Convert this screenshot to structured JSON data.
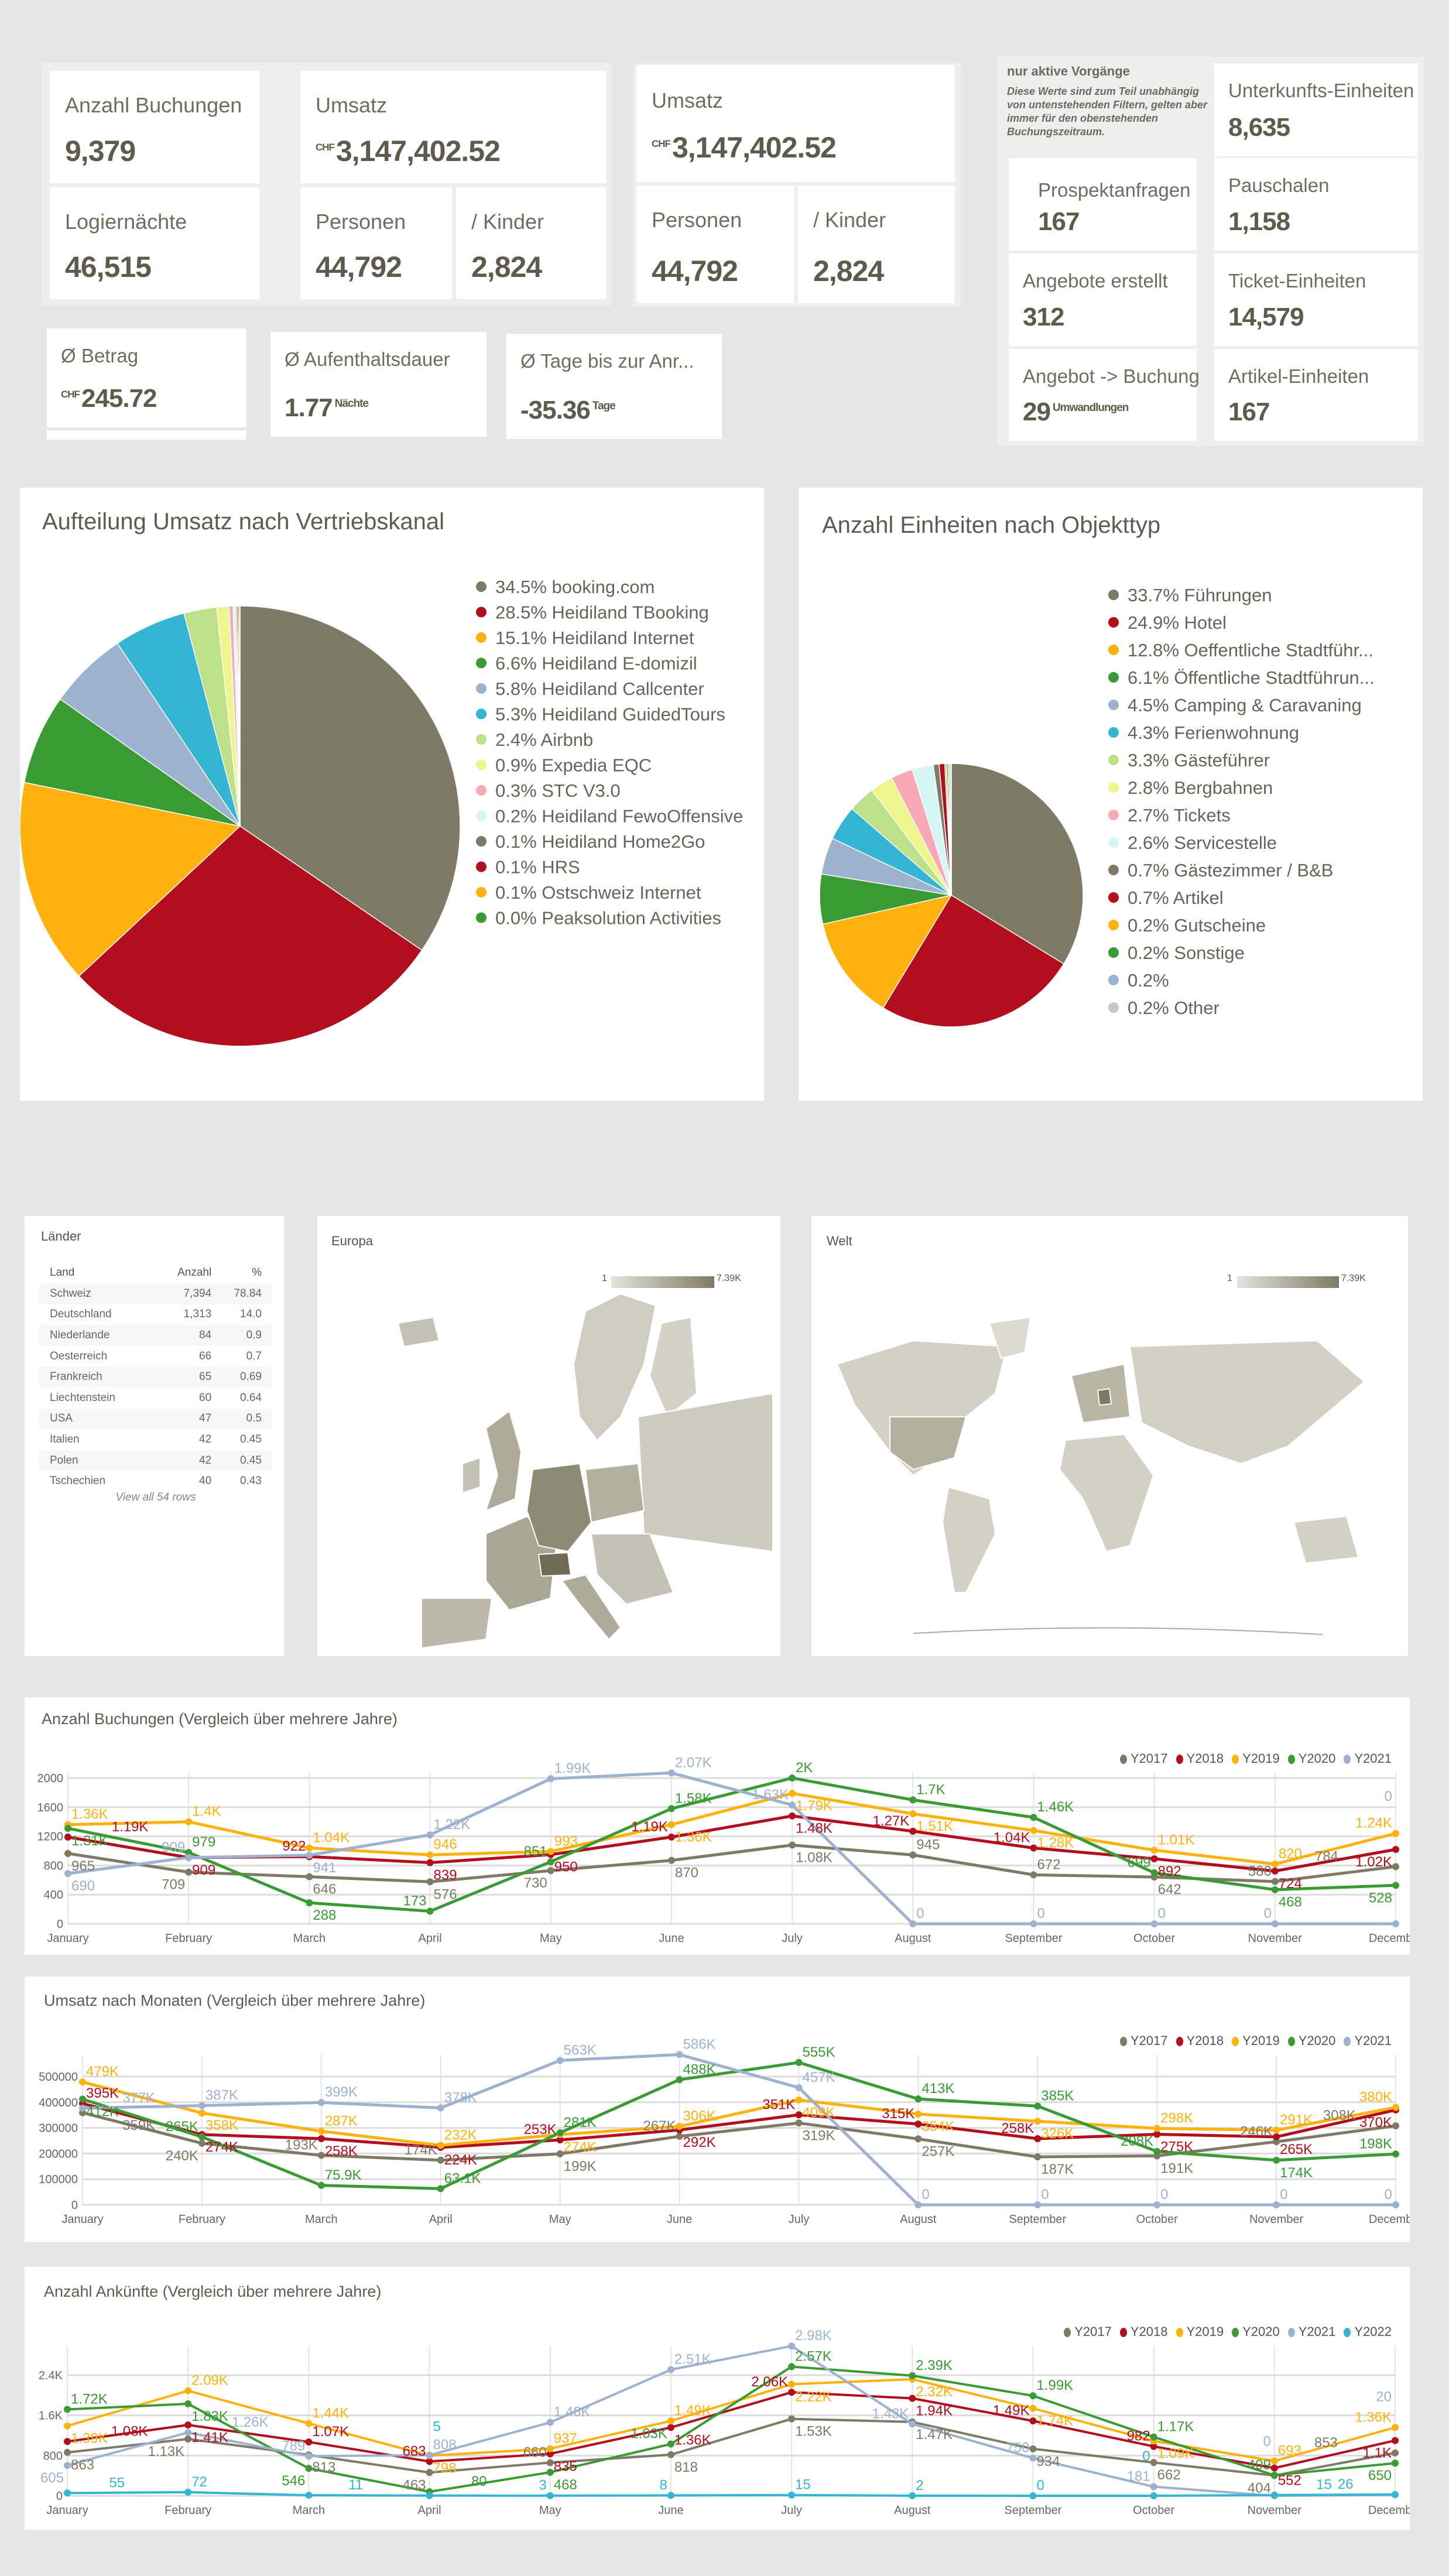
{
  "kpi_group1": {
    "anzahl_buchungen": {
      "label": "Anzahl Buchungen",
      "value": "9,379"
    },
    "umsatz": {
      "label": "Umsatz",
      "currency": "CHF",
      "value": "3,147,402.52"
    },
    "logiernaechte": {
      "label": "Logiernächte",
      "value": "46,515"
    },
    "personen": {
      "label": "Personen",
      "value": "44,792"
    },
    "kinder": {
      "label": "/ Kinder",
      "value": "2,824"
    }
  },
  "kpi_group2": {
    "umsatz": {
      "label": "Umsatz",
      "currency": "CHF",
      "value": "3,147,402.52"
    },
    "personen": {
      "label": "Personen",
      "value": "44,792"
    },
    "kinder": {
      "label": "/ Kinder",
      "value": "2,824"
    }
  },
  "averages": {
    "betrag": {
      "label": "Ø Betrag",
      "currency": "CHF",
      "value": "245.72"
    },
    "aufenthalt": {
      "label": "Ø Aufenthaltsdauer",
      "value": "1.77",
      "unit": "Nächte"
    },
    "tage": {
      "label": "Ø Tage bis zur Anr...",
      "value": "-35.36",
      "unit": "Tage"
    }
  },
  "active": {
    "title": "nur aktive Vorgänge",
    "note": "Diese Werte sind zum Teil unabhängig von untenstehenden Filtern, gelten aber immer für den obenstehenden Buchungszeitraum.",
    "unterkunft": {
      "label": "Unterkunfts-Einheiten",
      "value": "8,635"
    },
    "prospekt": {
      "label": "Prospektanfragen",
      "value": "167"
    },
    "pauschalen": {
      "label": "Pauschalen",
      "value": "1,158"
    },
    "angebote": {
      "label": "Angebote erstellt",
      "value": "312"
    },
    "tickets": {
      "label": "Ticket-Einheiten",
      "value": "14,579"
    },
    "angebot_buchung": {
      "label": "Angebot -> Buchung",
      "value": "29",
      "unit": "Umwandlungen"
    },
    "artikel": {
      "label": "Artikel-Einheiten",
      "value": "167"
    }
  },
  "countries": {
    "title": "Länder",
    "columns": [
      "Land",
      "Anzahl",
      "%"
    ],
    "rows": [
      [
        "Schweiz",
        "7,394",
        "78.84"
      ],
      [
        "Deutschland",
        "1,313",
        "14.0"
      ],
      [
        "Niederlande",
        "84",
        "0.9"
      ],
      [
        "Oesterreich",
        "66",
        "0.7"
      ],
      [
        "Frankreich",
        "65",
        "0.69"
      ],
      [
        "Liechtenstein",
        "60",
        "0.64"
      ],
      [
        "USA",
        "47",
        "0.5"
      ],
      [
        "Italien",
        "42",
        "0.45"
      ],
      [
        "Polen",
        "42",
        "0.45"
      ],
      [
        "Tschechien",
        "40",
        "0.43"
      ]
    ],
    "view_all": "View all 54 rows"
  },
  "maps": {
    "europe": {
      "title": "Europa",
      "legend_min": "1",
      "legend_max": "7.39K"
    },
    "world": {
      "title": "Welt",
      "legend_min": "1",
      "legend_max": "7.39K"
    },
    "scale_colors": [
      "#e4e3dc",
      "#7f7a65"
    ]
  },
  "colors": {
    "Y2017": "#7f7a65",
    "Y2018": "#b20e1e",
    "Y2019": "#ffb20e",
    "Y2020": "#3a9a34",
    "Y2021": "#9db2cf",
    "Y2022": "#33b5d3"
  },
  "chart_data": [
    {
      "type": "pie",
      "title": "Aufteilung Umsatz nach Vertriebskanal",
      "slices": [
        {
          "label": "booking.com",
          "value": 34.5,
          "color": "#7f7a65"
        },
        {
          "label": "Heidiland TBooking",
          "value": 28.5,
          "color": "#b20e1e"
        },
        {
          "label": "Heidiland Internet",
          "value": 15.1,
          "color": "#ffb20e"
        },
        {
          "label": "Heidiland E-domizil",
          "value": 6.6,
          "color": "#3a9a34"
        },
        {
          "label": "Heidiland Callcenter",
          "value": 5.8,
          "color": "#9db2cf"
        },
        {
          "label": "Heidiland GuidedTours",
          "value": 5.3,
          "color": "#33b5d3"
        },
        {
          "label": "Airbnb",
          "value": 2.4,
          "color": "#bde08a"
        },
        {
          "label": "Expedia EQC",
          "value": 0.9,
          "color": "#eef58d"
        },
        {
          "label": "STC V3.0",
          "value": 0.3,
          "color": "#f9a8b5"
        },
        {
          "label": "Heidiland FewoOffensive",
          "value": 0.2,
          "color": "#d6f6f6"
        },
        {
          "label": "Heidiland Home2Go",
          "value": 0.1,
          "color": "#7f7a65"
        },
        {
          "label": "HRS",
          "value": 0.1,
          "color": "#b20e1e"
        },
        {
          "label": "Ostschweiz Internet",
          "value": 0.1,
          "color": "#ffb20e"
        },
        {
          "label": "Peaksolution Activities",
          "value": 0.0,
          "color": "#3a9a34"
        }
      ]
    },
    {
      "type": "pie",
      "title": "Anzahl Einheiten nach Objekttyp",
      "slices": [
        {
          "label": "Führungen",
          "value": 33.7,
          "color": "#7f7a65"
        },
        {
          "label": "Hotel",
          "value": 24.9,
          "color": "#b20e1e"
        },
        {
          "label": "Oeffentliche Stadtführ...",
          "value": 12.8,
          "color": "#ffb20e"
        },
        {
          "label": "Öffentliche Stadtführun...",
          "value": 6.1,
          "color": "#3a9a34"
        },
        {
          "label": "Camping & Caravaning",
          "value": 4.5,
          "color": "#9db2cf"
        },
        {
          "label": "Ferienwohnung",
          "value": 4.3,
          "color": "#33b5d3"
        },
        {
          "label": "Gästeführer",
          "value": 3.3,
          "color": "#bde08a"
        },
        {
          "label": "Bergbahnen",
          "value": 2.8,
          "color": "#eef58d"
        },
        {
          "label": "Tickets",
          "value": 2.7,
          "color": "#f9a8b5"
        },
        {
          "label": "Servicestelle",
          "value": 2.6,
          "color": "#d6f6f6"
        },
        {
          "label": "Gästezimmer / B&B",
          "value": 0.7,
          "color": "#7f7a65"
        },
        {
          "label": "Artikel",
          "value": 0.7,
          "color": "#b20e1e"
        },
        {
          "label": "Gutscheine",
          "value": 0.2,
          "color": "#ffb20e"
        },
        {
          "label": "Sonstige",
          "value": 0.2,
          "color": "#3a9a34"
        },
        {
          "label": "",
          "value": 0.2,
          "color": "#9db2cf"
        },
        {
          "label": "Other",
          "value": 0.2,
          "color": "#c8c8c8"
        }
      ]
    },
    {
      "type": "line",
      "title": "Anzahl Buchungen (Vergleich über mehrere Jahre)",
      "categories": [
        "January",
        "February",
        "March",
        "April",
        "May",
        "June",
        "July",
        "August",
        "September",
        "October",
        "November",
        "December"
      ],
      "ylim": [
        0,
        2000
      ],
      "yticks": [
        0,
        400,
        800,
        1200,
        1600,
        2000
      ],
      "ytick_labels": [
        "0",
        "400",
        "800",
        "1200",
        "1600",
        "2000"
      ],
      "grid": true,
      "legend": "top-right",
      "series": [
        {
          "name": "Y2017",
          "values": [
            965,
            709,
            646,
            576,
            730,
            870,
            1080,
            945,
            672,
            642,
            580,
            784
          ]
        },
        {
          "name": "Y2018",
          "values": [
            1190,
            909,
            922,
            839,
            950,
            1190,
            1480,
            1270,
            1040,
            892,
            724,
            1020
          ]
        },
        {
          "name": "Y2019",
          "values": [
            1360,
            1400,
            1040,
            946,
            993,
            1360,
            1790,
            1510,
            1280,
            1010,
            820,
            1240
          ]
        },
        {
          "name": "Y2020",
          "values": [
            1310,
            979,
            288,
            173,
            851,
            1580,
            2000,
            1700,
            1460,
            699,
            468,
            528
          ]
        },
        {
          "name": "Y2021",
          "values": [
            690,
            909,
            941,
            1220,
            1990,
            2070,
            1630,
            0,
            0,
            0,
            0,
            0
          ]
        }
      ]
    },
    {
      "type": "line",
      "title": "Umsatz nach Monaten (Vergleich über mehrere Jahre)",
      "categories": [
        "January",
        "February",
        "March",
        "April",
        "May",
        "June",
        "July",
        "August",
        "September",
        "October",
        "November",
        "December"
      ],
      "ylim": [
        0,
        500000
      ],
      "yticks": [
        0,
        100000,
        200000,
        300000,
        400000,
        500000
      ],
      "ytick_labels": [
        "0",
        "100000",
        "200000",
        "300000",
        "400000",
        "500000"
      ],
      "grid": true,
      "legend": "top-right",
      "series": [
        {
          "name": "Y2017",
          "values": [
            359000,
            240000,
            193000,
            174000,
            199000,
            267000,
            319000,
            257000,
            187000,
            191000,
            246000,
            308000
          ]
        },
        {
          "name": "Y2018",
          "values": [
            395000,
            274000,
            258000,
            224000,
            253000,
            292000,
            351000,
            315000,
            258000,
            275000,
            265000,
            370000
          ]
        },
        {
          "name": "Y2019",
          "values": [
            479000,
            358000,
            287000,
            232000,
            274000,
            306000,
            409000,
            354000,
            326000,
            298000,
            291000,
            380000
          ]
        },
        {
          "name": "Y2020",
          "values": [
            412000,
            265000,
            75900,
            63100,
            281000,
            488000,
            555000,
            413000,
            385000,
            208000,
            174000,
            198000
          ]
        },
        {
          "name": "Y2021",
          "values": [
            377000,
            387000,
            399000,
            378000,
            563000,
            586000,
            457000,
            0,
            0,
            0,
            0,
            0
          ]
        }
      ]
    },
    {
      "type": "line",
      "title": "Anzahl Ankünfte (Vergleich über mehrere Jahre)",
      "categories": [
        "January",
        "February",
        "March",
        "April",
        "May",
        "June",
        "July",
        "August",
        "September",
        "October",
        "November",
        "December"
      ],
      "ylim": [
        0,
        2400
      ],
      "yticks": [
        0,
        800,
        1600,
        2400
      ],
      "ytick_labels": [
        "0",
        "800",
        "1.6K",
        "2.4K"
      ],
      "grid": true,
      "legend": "top-right",
      "series": [
        {
          "name": "Y2017",
          "values": [
            863,
            1130,
            813,
            463,
            660,
            818,
            1530,
            1470,
            934,
            662,
            404,
            853
          ]
        },
        {
          "name": "Y2018",
          "values": [
            1080,
            1410,
            1070,
            683,
            835,
            1360,
            2060,
            1940,
            1490,
            982,
            552,
            1100
          ]
        },
        {
          "name": "Y2019",
          "values": [
            1390,
            2090,
            1440,
            798,
            937,
            1490,
            2220,
            2320,
            1740,
            1090,
            693,
            1360
          ]
        },
        {
          "name": "Y2020",
          "values": [
            1720,
            1830,
            546,
            80,
            468,
            1030,
            2570,
            2390,
            1990,
            1170,
            409,
            650
          ]
        },
        {
          "name": "Y2021",
          "values": [
            605,
            1260,
            789,
            808,
            1460,
            2510,
            2980,
            1430,
            750,
            181,
            0,
            20
          ]
        },
        {
          "name": "Y2022",
          "values": [
            55,
            72,
            11,
            5,
            3,
            8,
            15,
            2,
            0,
            0,
            15,
            26
          ]
        }
      ]
    }
  ]
}
